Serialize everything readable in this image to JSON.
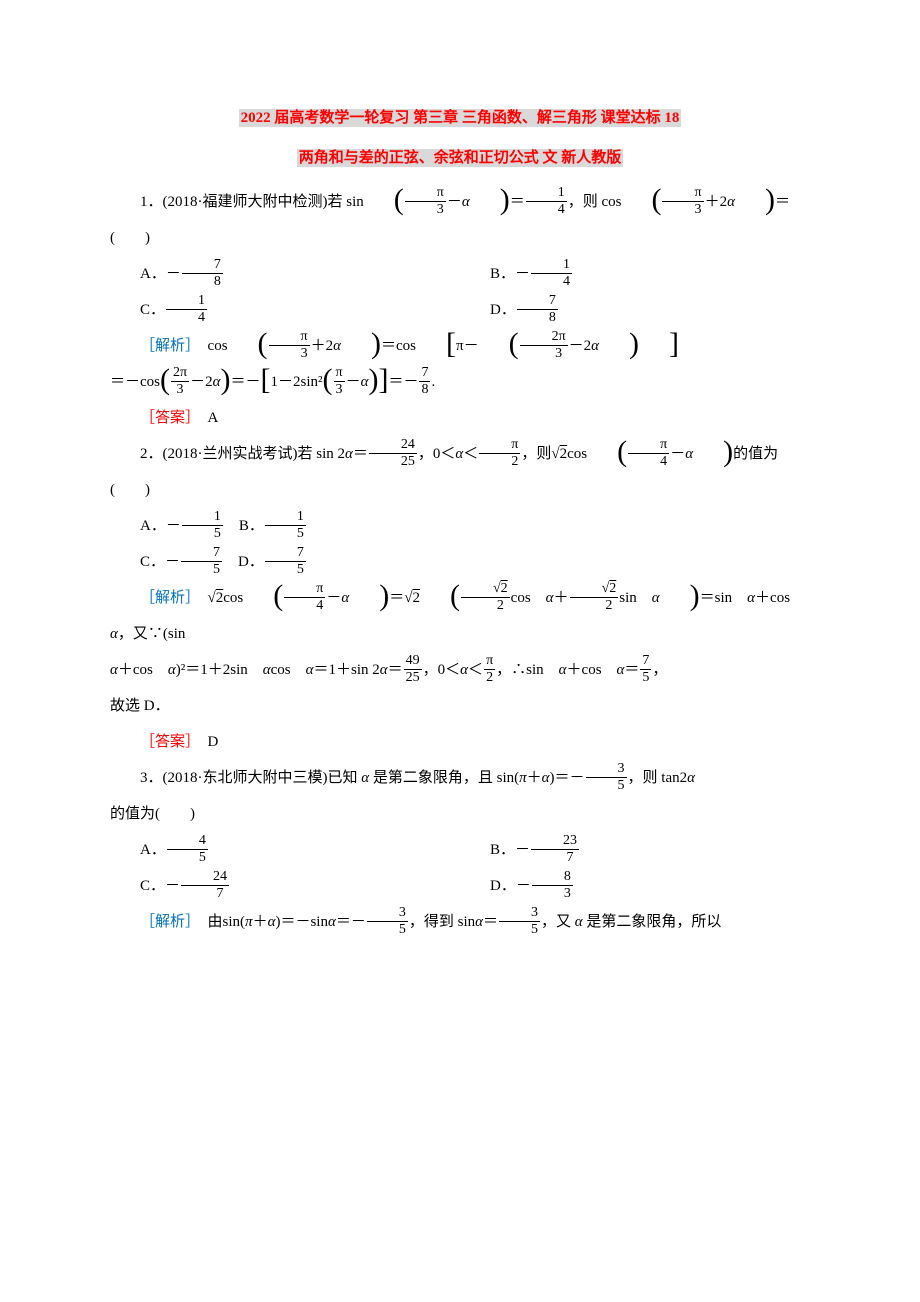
{
  "title": "2022 届高考数学一轮复习 第三章 三角函数、解三角形 课堂达标 18",
  "subtitle": "两角和与差的正弦、余弦和正切公式 文 新人教版",
  "labels": {
    "analysis": "［解析］",
    "answer": "［答案］"
  },
  "q1": {
    "prefix": "1．(2018·福建师大附中检测)若 sin",
    "mid1": "＝",
    "mid2": "，则 cos",
    "tail": "＝(　　)",
    "arg1_num": "π",
    "arg1_den": "3",
    "arg1_op": "－",
    "arg1_var": "α",
    "val_num": "1",
    "val_den": "4",
    "arg2_num": "π",
    "arg2_den": "3",
    "arg2_op": "＋2",
    "arg2_var": "α",
    "A_num": "7",
    "A_den": "8",
    "B_num": "1",
    "B_den": "4",
    "C_num": "1",
    "C_den": "4",
    "D_num": "7",
    "D_den": "8",
    "sol_cos": "cos",
    "sol_eq": "＝cos",
    "sol_pi1_num": "π",
    "sol_pi1_den": "3",
    "sol_pi": "π－",
    "sol_inner_num": "2π",
    "sol_inner_den": "3",
    "line2_a": "＝－cos",
    "line2_num": "2π",
    "line2_den": "3",
    "line2_b": "＝－",
    "line2_c": "1－2sin²",
    "line2_in_num": "π",
    "line2_in_den": "3",
    "line2_d": "＝－",
    "line2_res_num": "7",
    "line2_res_den": "8",
    "answer": "A"
  },
  "q2": {
    "prefix": "2．(2018·兰州实战考试)若 sin 2",
    "var": "α",
    "eq1": "＝",
    "v_num": "24",
    "v_den": "25",
    "range": "，0＜",
    "lt": "＜",
    "pi_num": "π",
    "pi_den": "2",
    "mid": "，则",
    "sqrt2": "√2",
    "cos": "cos",
    "arg_num": "π",
    "arg_den": "4",
    "tail": "的值为(　　)",
    "A_num": "1",
    "A_den": "5",
    "B_num": "1",
    "B_den": "5",
    "C_num": "7",
    "C_den": "5",
    "D_num": "7",
    "D_den": "5",
    "sol_a": "cos",
    "sol_b": "＝",
    "sol_c_num": "√2",
    "sol_c_den": "2",
    "sol_cos": "cos　",
    "sol_plus": "＋",
    "sol_sin": "sin　",
    "sol_d": "＝sin　",
    "sol_e": "＋cos　",
    "sol_f": "，又∵(sin",
    "line2_a": "α",
    "line2_b": "＋cos　",
    "line2_c": ")²＝1＋2sin　",
    "line2_d": "cos　",
    "line2_e": "＝1＋sin 2",
    "line2_f": "＝",
    "line2_num": "49",
    "line2_den": "25",
    "line2_g": "，0＜",
    "line2_h": "＜",
    "line2_pi_num": "π",
    "line2_pi_den": "2",
    "line2_i": "，∴sin　",
    "line2_j": "＋cos　",
    "line2_k": "＝",
    "line2_res_num": "7",
    "line2_res_den": "5",
    "last": "故选 D．",
    "answer": "D"
  },
  "q3": {
    "prefix": "3．(2018·东北师大附中三模)已知 ",
    "var": "α",
    "a": " 是第二象限角，且 sin(",
    "pi": "π",
    "b": "＋",
    "c": ")＝－",
    "v_num": "3",
    "v_den": "5",
    "d": "，则 tan2",
    "tail": "的值为(　　)",
    "A_num": "4",
    "A_den": "5",
    "B_num": "23",
    "B_den": "7",
    "C_num": "24",
    "C_den": "7",
    "D_num": "8",
    "D_den": "3",
    "sol_a": "由sin(",
    "sol_b": "＋",
    "sol_c": ")＝－sin",
    "sol_d": "＝－",
    "sol_e": "，得到 sin",
    "sol_f": "＝",
    "sol_g": "，又 ",
    "sol_h": " 是第二象限角，所以"
  }
}
